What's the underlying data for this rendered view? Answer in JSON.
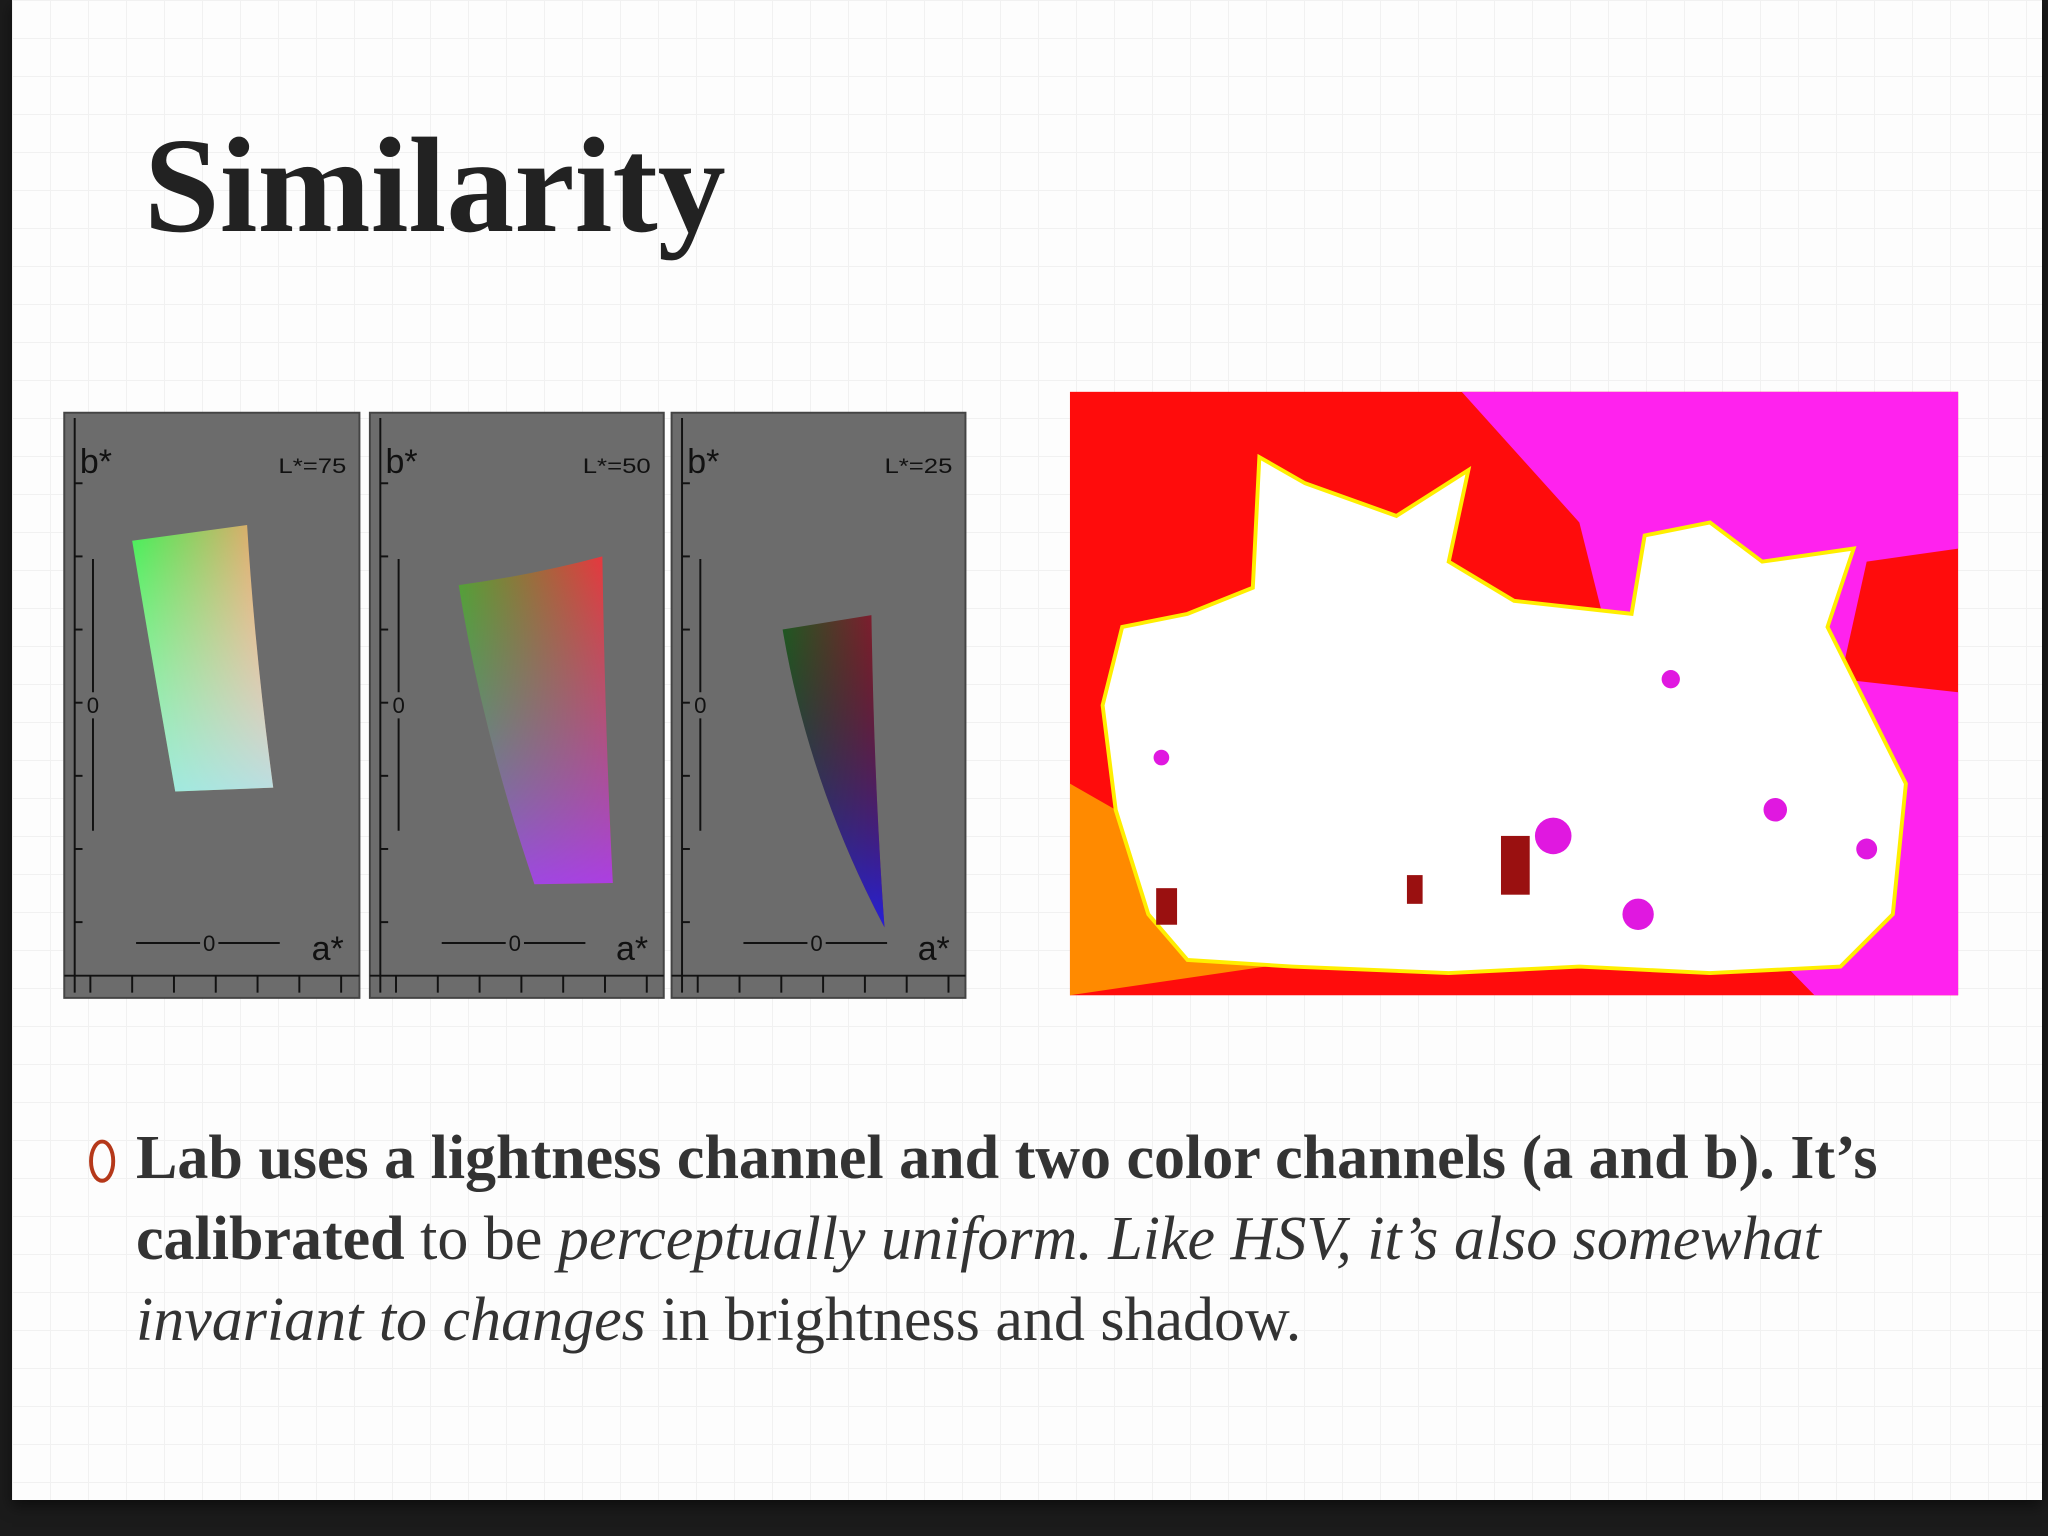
{
  "header": {
    "title": "Similarity"
  },
  "figures": {
    "lab_panels": [
      {
        "y_label": "b*",
        "lightness": "L*=75",
        "y_zero": "0",
        "x_zero": "0",
        "x_label": "a*"
      },
      {
        "y_label": "b*",
        "lightness": "L*=50",
        "y_zero": "0",
        "x_zero": "0",
        "x_label": "a*"
      },
      {
        "y_label": "b*",
        "lightness": "L*=25",
        "y_zero": "0",
        "x_zero": "0",
        "x_label": "a*"
      }
    ]
  },
  "body": {
    "bullets": [
      {
        "runs": [
          {
            "text": "Lab uses a lightness channel and two color channels (a and b). It’s calibrated",
            "style": "bold"
          },
          {
            "text": " to be ",
            "style": "normal"
          },
          {
            "text": "perceptually uniform. Like HSV, it’s also somewhat invariant to changes",
            "style": "italic"
          },
          {
            "text": " in brightness and shadow.",
            "style": "normal"
          }
        ]
      }
    ]
  }
}
